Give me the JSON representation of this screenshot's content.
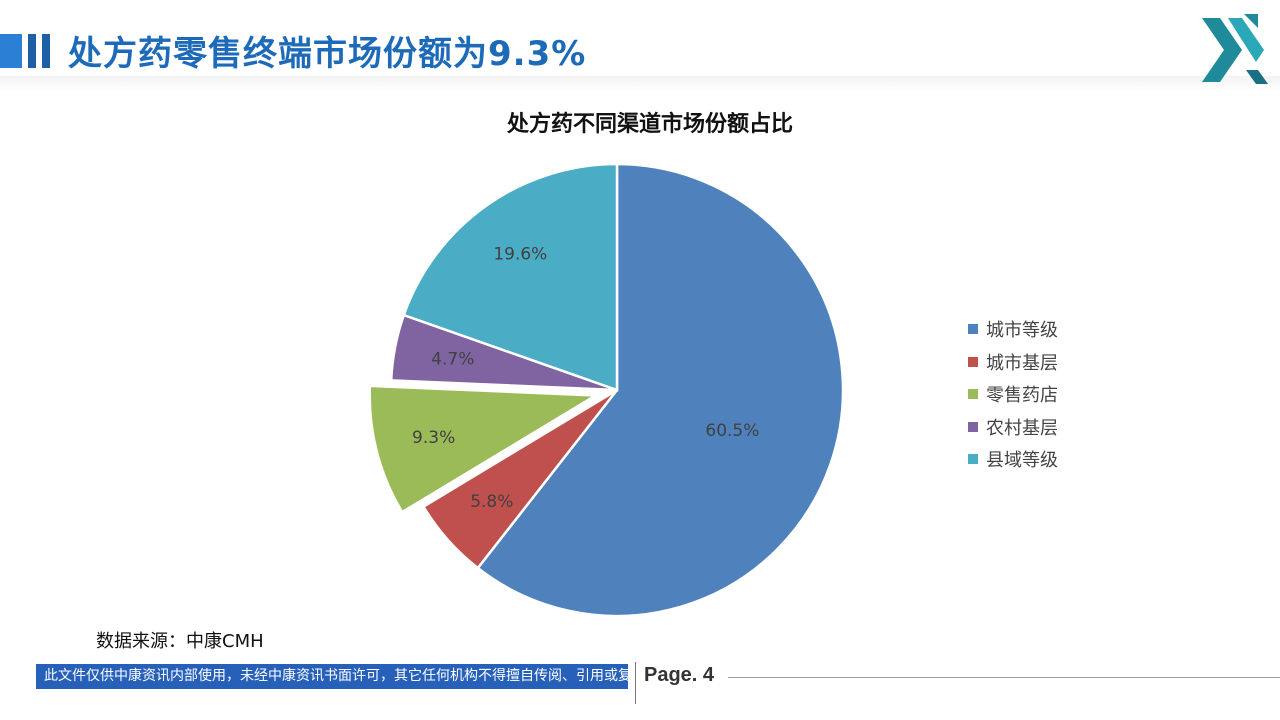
{
  "header": {
    "title": "处方药零售终端市场份额为9.3%"
  },
  "chart_data": {
    "type": "pie",
    "title": "处方药不同渠道市场份额占比",
    "slices": [
      {
        "label": "城市等级",
        "value": 60.5,
        "display": "60.5%",
        "color": "#4f81bd",
        "exploded": false
      },
      {
        "label": "城市基层",
        "value": 5.8,
        "display": "5.8%",
        "color": "#c0504d",
        "exploded": false
      },
      {
        "label": "零售药店",
        "value": 9.3,
        "display": "9.3%",
        "color": "#9bbb59",
        "exploded": true
      },
      {
        "label": "农村基层",
        "value": 4.7,
        "display": "4.7%",
        "color": "#8064a2",
        "exploded": false
      },
      {
        "label": "县域等级",
        "value": 19.6,
        "display": "19.6%",
        "color": "#4bacc6",
        "exploded": false
      }
    ],
    "legend_position": "right"
  },
  "source": {
    "text": "数据来源：中康CMH"
  },
  "footer": {
    "note": "此文件仅供中康资讯内部使用，未经中康资讯书面许可，其它任何机构不得擅自传阅、引用或复制",
    "page": "Page. 4"
  }
}
